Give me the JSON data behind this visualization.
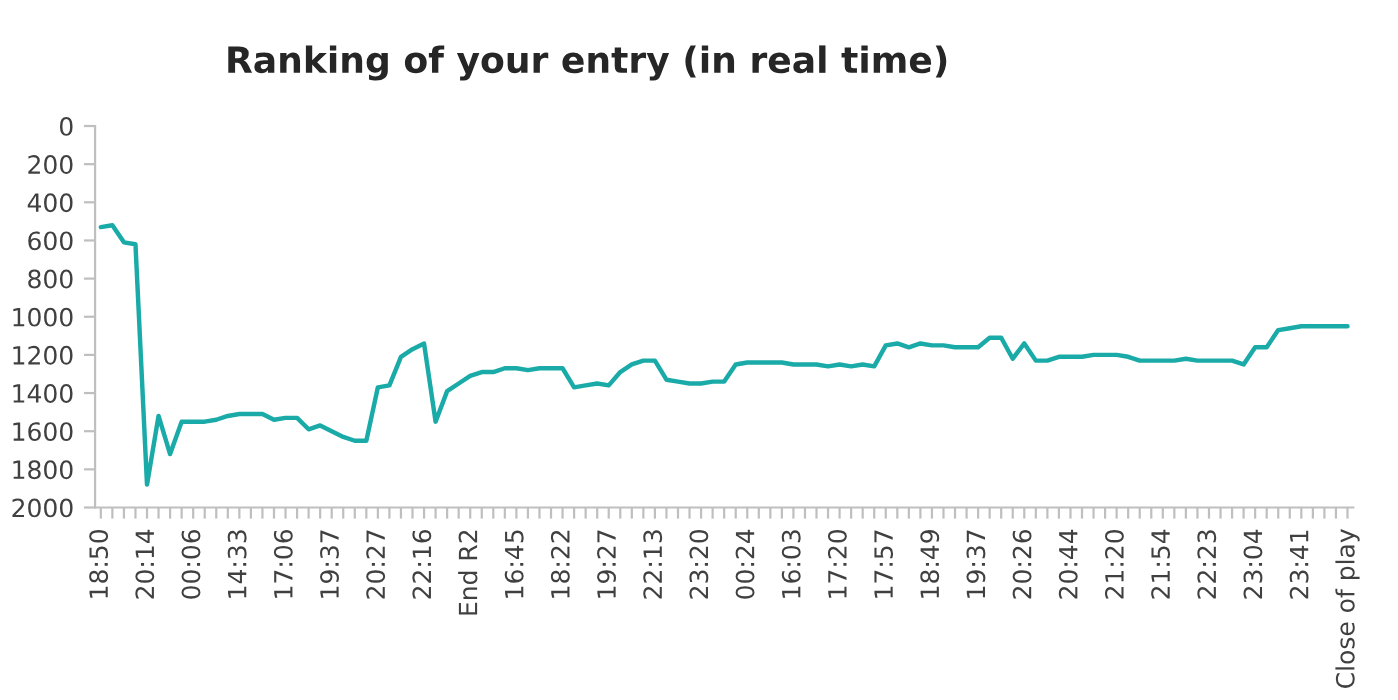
{
  "chart_data": {
    "type": "line",
    "title": "Ranking of your entry (in real time)",
    "categories": [
      "18:50",
      null,
      null,
      null,
      "20:14",
      null,
      null,
      null,
      "00:06",
      null,
      null,
      null,
      "14:33",
      null,
      null,
      null,
      "17:06",
      null,
      null,
      null,
      "19:37",
      null,
      null,
      null,
      "20:27",
      null,
      null,
      null,
      "22:16",
      null,
      null,
      null,
      "End R2",
      null,
      null,
      null,
      "16:45",
      null,
      null,
      null,
      "18:22",
      null,
      null,
      null,
      "19:27",
      null,
      null,
      null,
      "22:13",
      null,
      null,
      null,
      "23:20",
      null,
      null,
      null,
      "00:24",
      null,
      null,
      null,
      "16:03",
      null,
      null,
      null,
      "17:20",
      null,
      null,
      null,
      "17:57",
      null,
      null,
      null,
      "18:49",
      null,
      null,
      null,
      "19:37",
      null,
      null,
      null,
      "20:26",
      null,
      null,
      null,
      "20:44",
      null,
      null,
      null,
      "21:20",
      null,
      null,
      null,
      "21:54",
      null,
      null,
      null,
      "22:23",
      null,
      null,
      null,
      "23:04",
      null,
      null,
      null,
      "23:41",
      null,
      null,
      null,
      "Close of play"
    ],
    "series": [
      {
        "color": "#1aaba8",
        "values": [
          530,
          520,
          610,
          620,
          1880,
          1520,
          1720,
          1550,
          1550,
          1550,
          1540,
          1520,
          1510,
          1510,
          1510,
          1540,
          1530,
          1530,
          1590,
          1570,
          1600,
          1630,
          1650,
          1650,
          1370,
          1360,
          1210,
          1170,
          1140,
          1550,
          1390,
          1350,
          1310,
          1290,
          1290,
          1270,
          1270,
          1280,
          1270,
          1270,
          1270,
          1370,
          1360,
          1350,
          1360,
          1290,
          1250,
          1230,
          1230,
          1330,
          1340,
          1350,
          1350,
          1340,
          1340,
          1250,
          1240,
          1240,
          1240,
          1240,
          1250,
          1250,
          1250,
          1260,
          1250,
          1260,
          1250,
          1260,
          1150,
          1140,
          1160,
          1140,
          1150,
          1150,
          1160,
          1160,
          1160,
          1110,
          1110,
          1220,
          1140,
          1230,
          1230,
          1210,
          1210,
          1210,
          1200,
          1200,
          1200,
          1210,
          1230,
          1230,
          1230,
          1230,
          1220,
          1230,
          1230,
          1230,
          1230,
          1250,
          1160,
          1160,
          1070,
          1060,
          1050,
          1050,
          1050,
          1050,
          1050
        ]
      }
    ],
    "ylim": [
      2000,
      0
    ],
    "yticks": [
      0,
      200,
      400,
      600,
      800,
      1000,
      1200,
      1400,
      1600,
      1800,
      2000
    ],
    "grid": false,
    "legend": false,
    "marker": "none",
    "line_style": "solid"
  }
}
